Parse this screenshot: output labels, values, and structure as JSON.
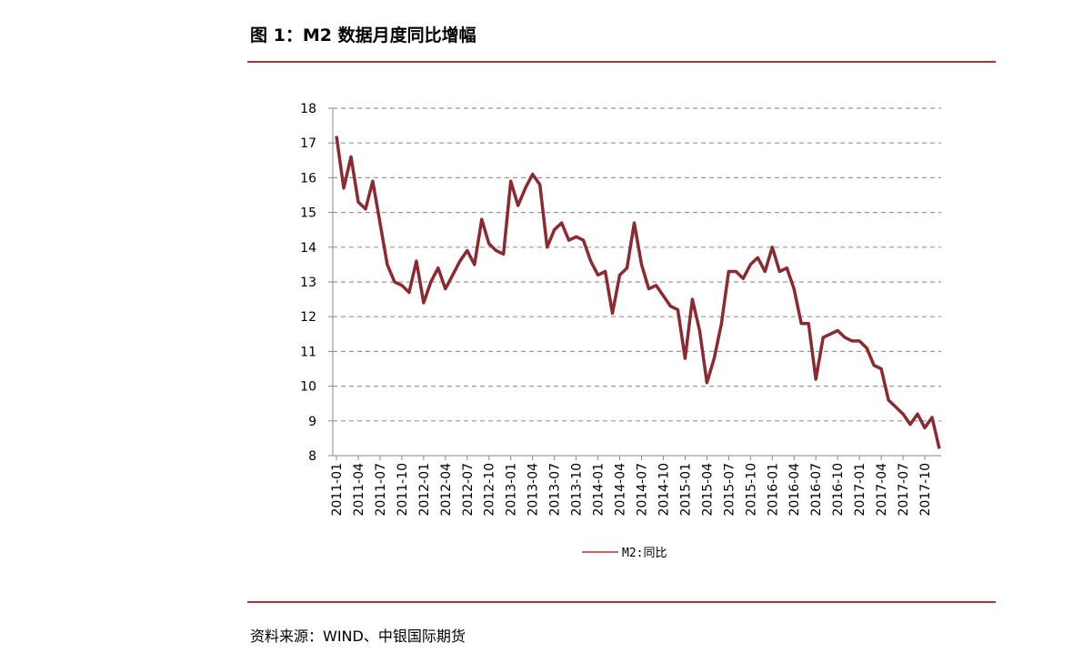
{
  "title": "图 1：M2 数据月度同比增幅",
  "source": "资料来源：WIND、中银国际期货",
  "colors": {
    "line": "#8b2a30",
    "rule": "#b5313d",
    "grid": "#999999"
  },
  "chart_data": {
    "type": "line",
    "title": "",
    "xlabel": "",
    "ylabel": "",
    "ylim": [
      8,
      18
    ],
    "yticks": [
      8,
      9,
      10,
      11,
      12,
      13,
      14,
      15,
      16,
      17,
      18
    ],
    "grid": "horizontal-dashed",
    "legend_position": "bottom-center",
    "x_tick_labels": [
      "2011-01",
      "2011-04",
      "2011-07",
      "2011-10",
      "2012-01",
      "2012-04",
      "2012-07",
      "2012-10",
      "2013-01",
      "2013-04",
      "2013-07",
      "2013-10",
      "2014-01",
      "2014-04",
      "2014-07",
      "2014-10",
      "2015-01",
      "2015-04",
      "2015-07",
      "2015-10",
      "2016-01",
      "2016-04",
      "2016-07",
      "2016-10",
      "2017-01",
      "2017-04",
      "2017-07",
      "2017-10"
    ],
    "series": [
      {
        "name": "M2:同比",
        "start": "2011-01",
        "values": [
          17.2,
          15.7,
          16.6,
          15.3,
          15.1,
          15.9,
          14.7,
          13.5,
          13.0,
          12.9,
          12.7,
          13.6,
          12.4,
          13.0,
          13.4,
          12.8,
          13.2,
          13.6,
          13.9,
          13.5,
          14.8,
          14.1,
          13.9,
          13.8,
          15.9,
          15.2,
          15.7,
          16.1,
          15.8,
          14.0,
          14.5,
          14.7,
          14.2,
          14.3,
          14.2,
          13.6,
          13.2,
          13.3,
          12.1,
          13.2,
          13.4,
          14.7,
          13.5,
          12.8,
          12.9,
          12.6,
          12.3,
          12.2,
          10.8,
          12.5,
          11.6,
          10.1,
          10.8,
          11.8,
          13.3,
          13.3,
          13.1,
          13.5,
          13.7,
          13.3,
          14.0,
          13.3,
          13.4,
          12.8,
          11.8,
          11.8,
          10.2,
          11.4,
          11.5,
          11.6,
          11.4,
          11.3,
          11.3,
          11.1,
          10.6,
          10.5,
          9.6,
          9.4,
          9.2,
          8.9,
          9.2,
          8.8,
          9.1,
          8.2
        ]
      }
    ]
  }
}
